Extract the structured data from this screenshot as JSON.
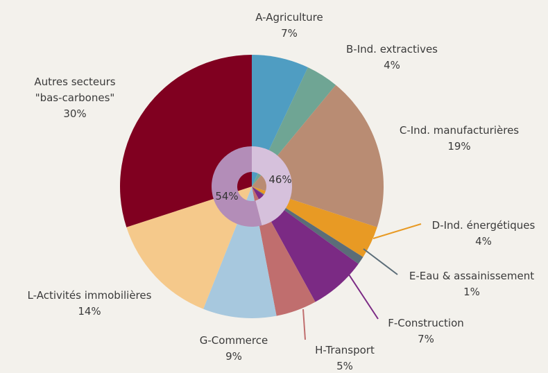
{
  "chart_data": {
    "type": "pie",
    "categories": [
      "A-Agriculture",
      "B-Ind. extractives",
      "C-Ind. manufacturières",
      "D-Ind. énergétiques",
      "E-Eau & assainissement",
      "F-Construction",
      "H-Transport",
      "G-Commerce",
      "L-Activités immobilières",
      "Autres secteurs \"bas-carbones\""
    ],
    "values": [
      7,
      4,
      19,
      4,
      1,
      7,
      5,
      9,
      14,
      30
    ],
    "value_labels": [
      "7%",
      "4%",
      "19%",
      "4%",
      "1%",
      "7%",
      "5%",
      "9%",
      "14%",
      "30%"
    ],
    "colors": [
      "#4f9dc2",
      "#6fa594",
      "#b98c73",
      "#e89a24",
      "#5b6d78",
      "#7b2a84",
      "#c06e6e",
      "#a7c8de",
      "#f5c98b",
      "#800020"
    ],
    "inner": {
      "values": [
        46,
        54
      ],
      "value_labels": [
        "46%",
        "54%"
      ],
      "colors": [
        "#d6c1dc",
        "#b38db8"
      ]
    }
  }
}
